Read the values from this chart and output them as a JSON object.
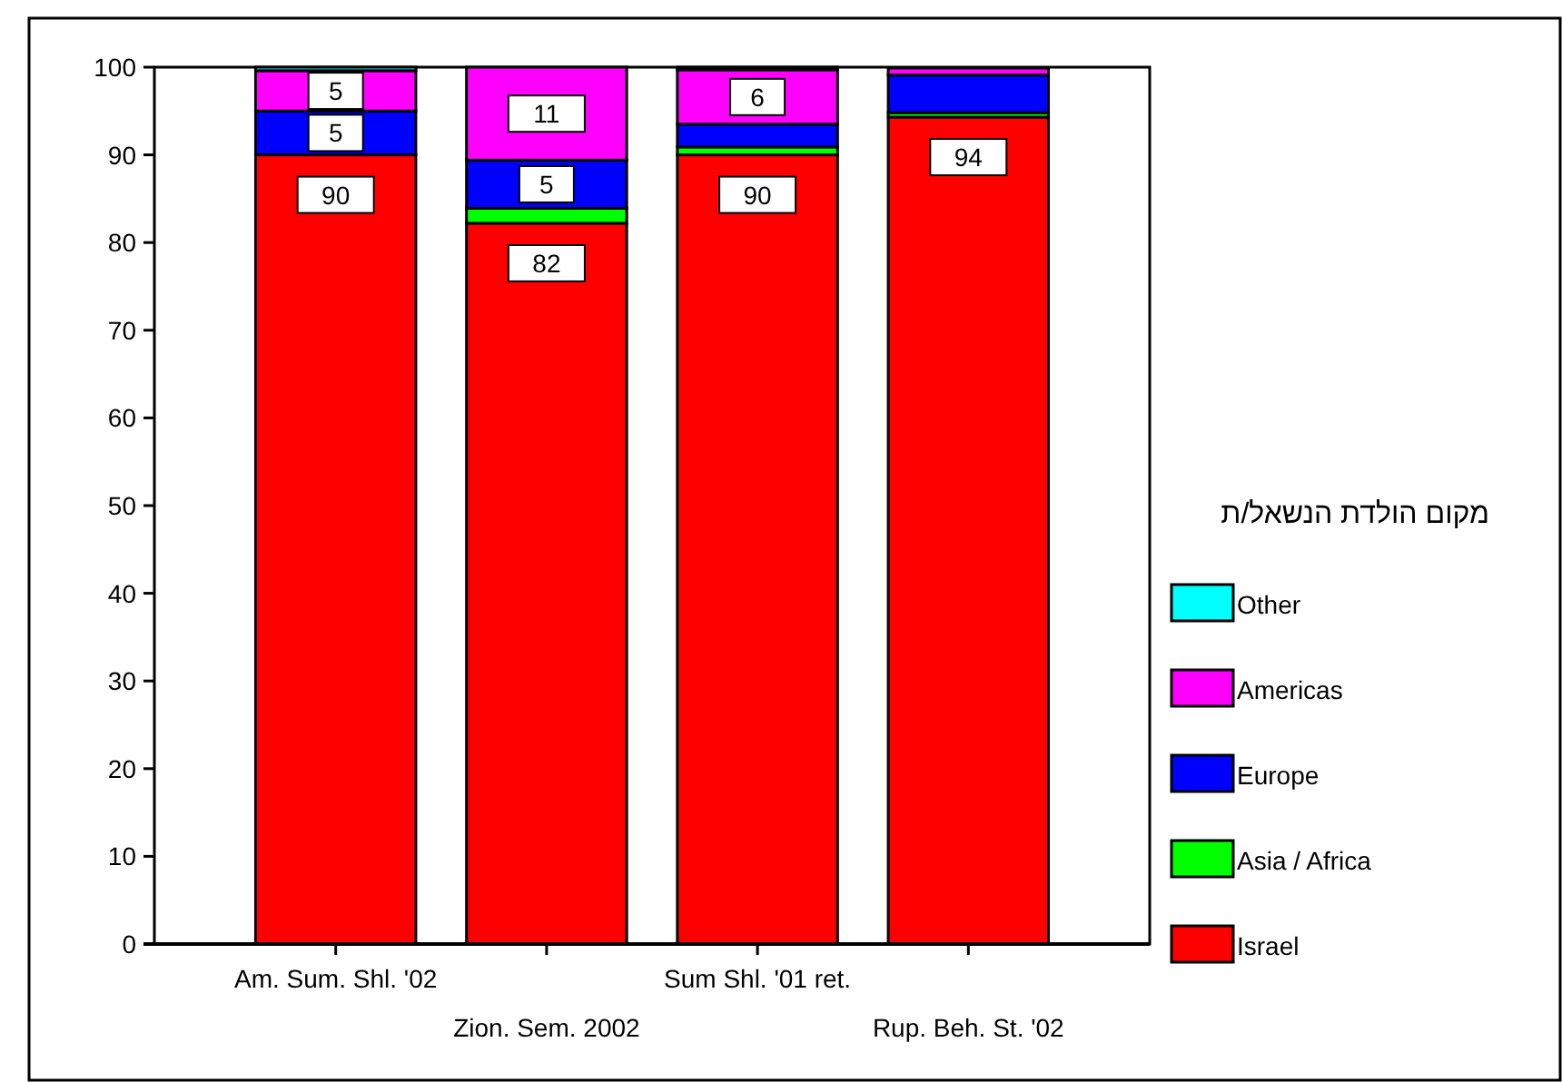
{
  "chart_data": {
    "type": "bar",
    "stacked": true,
    "legend": "right",
    "legend_title": "מקום הולדת הנשאל/ת",
    "categories": [
      "Am. Sum. Shl. '02",
      "Zion. Sem. 2002",
      "Sum Shl. '01 ret.",
      "Rup. Beh. St. '02"
    ],
    "ylim": [
      0,
      100
    ],
    "yticks": [
      0,
      10,
      20,
      30,
      40,
      50,
      60,
      70,
      80,
      90,
      100
    ],
    "series": [
      {
        "name": "Israel",
        "color": "#ff0000",
        "values": [
          90,
          82.2,
          90,
          94.3
        ],
        "value_labels": [
          "90",
          "82",
          "90",
          "94"
        ]
      },
      {
        "name": "Asia / Africa",
        "color": "#00ff00",
        "values": [
          0,
          1.7,
          0.9,
          0.5
        ],
        "value_labels": [
          null,
          null,
          null,
          null
        ]
      },
      {
        "name": "Europe",
        "color": "#0000ff",
        "values": [
          5,
          5.5,
          2.6,
          4.3
        ],
        "value_labels": [
          "5",
          "5",
          null,
          null
        ]
      },
      {
        "name": "Americas",
        "color": "#ff00ff",
        "values": [
          4.6,
          10.6,
          6.2,
          0.8
        ],
        "value_labels": [
          "5",
          "11",
          "6",
          null
        ]
      },
      {
        "name": "Other",
        "color": "#00ffff",
        "values": [
          0.4,
          0,
          0.3,
          null
        ],
        "value_labels": [
          null,
          null,
          null,
          null
        ]
      }
    ]
  }
}
